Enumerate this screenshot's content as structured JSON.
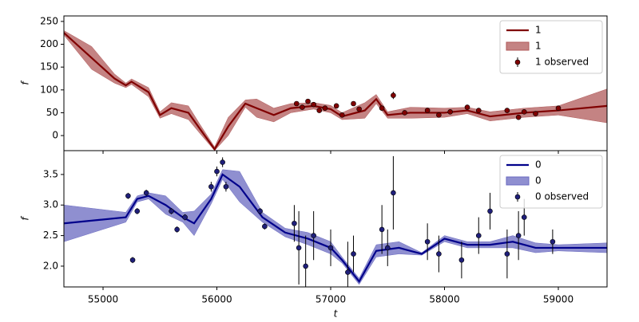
{
  "chart_data": [
    {
      "type": "line",
      "ylabel": "f",
      "xlim": [
        54656,
        59428
      ],
      "ylim": [
        -33,
        262
      ],
      "yticks": [
        0,
        50,
        100,
        150,
        200,
        250
      ],
      "legend": "upper right",
      "series": [
        {
          "name": "1",
          "kind": "line",
          "color": "#800000",
          "x": [
            54656,
            54900,
            55100,
            55200,
            55250,
            55400,
            55500,
            55600,
            55750,
            55850,
            55980,
            56100,
            56250,
            56350,
            56500,
            56650,
            56850,
            57000,
            57100,
            57300,
            57400,
            57500,
            57700,
            58000,
            58200,
            58400,
            58700,
            59000,
            59428
          ],
          "values": [
            225,
            170,
            125,
            110,
            118,
            95,
            45,
            60,
            50,
            15,
            -30,
            20,
            70,
            60,
            45,
            60,
            65,
            58,
            42,
            55,
            80,
            45,
            50,
            50,
            55,
            42,
            50,
            55,
            65
          ]
        },
        {
          "name": "1",
          "kind": "band",
          "color": "#b05a5a",
          "x": [
            54656,
            54900,
            55100,
            55200,
            55250,
            55400,
            55500,
            55600,
            55750,
            55850,
            55980,
            56100,
            56250,
            56350,
            56500,
            56650,
            56850,
            57000,
            57100,
            57300,
            57400,
            57500,
            57700,
            58000,
            58200,
            58400,
            58700,
            59000,
            59428
          ],
          "lower": [
            220,
            145,
            115,
            105,
            112,
            85,
            38,
            48,
            35,
            5,
            -33,
            0,
            62,
            40,
            30,
            50,
            58,
            50,
            35,
            38,
            70,
            38,
            38,
            40,
            48,
            32,
            40,
            45,
            28
          ],
          "upper": [
            230,
            195,
            135,
            115,
            124,
            105,
            52,
            72,
            65,
            25,
            -25,
            40,
            78,
            80,
            60,
            70,
            72,
            66,
            50,
            72,
            90,
            52,
            62,
            60,
            62,
            52,
            60,
            65,
            102
          ]
        },
        {
          "name": "1 observed",
          "kind": "points",
          "color": "#800000",
          "x": [
            56700,
            56750,
            56800,
            56850,
            56900,
            56950,
            57050,
            57100,
            57200,
            57250,
            57450,
            57550,
            57650,
            57850,
            57950,
            58050,
            58200,
            58300,
            58550,
            58650,
            58700,
            58800,
            59000
          ],
          "values": [
            70,
            62,
            75,
            68,
            55,
            60,
            65,
            45,
            70,
            58,
            60,
            88,
            50,
            55,
            45,
            52,
            62,
            55,
            55,
            40,
            52,
            48,
            60
          ],
          "errors": [
            5,
            5,
            5,
            5,
            5,
            5,
            5,
            5,
            5,
            5,
            5,
            8,
            5,
            5,
            5,
            5,
            5,
            5,
            5,
            5,
            5,
            5,
            5
          ]
        }
      ]
    },
    {
      "type": "line",
      "ylabel": "f",
      "xlabel": "t",
      "xlim": [
        54656,
        59428
      ],
      "ylim": [
        1.66,
        3.89
      ],
      "xticks": [
        55000,
        56000,
        57000,
        58000,
        59000
      ],
      "yticks": [
        {
          "value": 2,
          "label": "2.0"
        },
        2.5,
        {
          "value": 3,
          "label": "3.0"
        },
        3.5
      ],
      "legend": "upper right",
      "series": [
        {
          "name": "0",
          "kind": "line",
          "color": "#00008b",
          "x": [
            54656,
            55200,
            55300,
            55400,
            55550,
            55700,
            55800,
            55950,
            56050,
            56200,
            56400,
            56600,
            56800,
            57000,
            57100,
            57250,
            57400,
            57600,
            57800,
            58000,
            58200,
            58400,
            58600,
            58800,
            59000,
            59428
          ],
          "values": [
            2.7,
            2.8,
            3.1,
            3.15,
            3.0,
            2.8,
            2.7,
            3.1,
            3.5,
            3.3,
            2.8,
            2.55,
            2.45,
            2.3,
            2.1,
            1.75,
            2.25,
            2.3,
            2.2,
            2.45,
            2.35,
            2.35,
            2.4,
            2.3,
            2.3,
            2.3
          ]
        },
        {
          "name": "0",
          "kind": "band",
          "color": "#6a6ac0",
          "x": [
            54656,
            55200,
            55300,
            55400,
            55550,
            55700,
            55800,
            55950,
            56050,
            56200,
            56400,
            56600,
            56800,
            57000,
            57100,
            57250,
            57400,
            57600,
            57800,
            58000,
            58200,
            58400,
            58600,
            58800,
            59000,
            59428
          ],
          "lower": [
            2.4,
            2.72,
            3.05,
            3.1,
            2.85,
            2.72,
            2.5,
            3.02,
            3.42,
            3.05,
            2.72,
            2.48,
            2.35,
            2.2,
            2.05,
            1.7,
            2.15,
            2.2,
            2.18,
            2.4,
            2.3,
            2.3,
            2.3,
            2.22,
            2.25,
            2.22
          ],
          "upper": [
            3.0,
            2.88,
            3.15,
            3.2,
            3.15,
            2.88,
            2.9,
            3.18,
            3.58,
            3.55,
            2.88,
            2.62,
            2.55,
            2.4,
            2.15,
            1.8,
            2.35,
            2.4,
            2.22,
            2.5,
            2.4,
            2.4,
            2.5,
            2.38,
            2.35,
            2.38
          ]
        },
        {
          "name": "0 observed",
          "kind": "points",
          "color": "#1f1f7a",
          "x": [
            55220,
            55260,
            55300,
            55380,
            55600,
            55650,
            55720,
            55950,
            56000,
            56050,
            56080,
            56380,
            56420,
            56680,
            56720,
            56780,
            56850,
            57000,
            57150,
            57200,
            57450,
            57500,
            57550,
            57850,
            57950,
            58150,
            58300,
            58400,
            58550,
            58650,
            58700,
            58950
          ],
          "values": [
            3.15,
            2.1,
            2.9,
            3.2,
            2.9,
            2.6,
            2.8,
            3.3,
            3.55,
            3.7,
            3.3,
            2.9,
            2.65,
            2.7,
            2.3,
            2.0,
            2.5,
            2.3,
            1.9,
            2.2,
            2.6,
            2.3,
            3.2,
            2.4,
            2.2,
            2.1,
            2.5,
            2.9,
            2.2,
            2.5,
            2.8,
            2.4
          ],
          "errors": [
            0.05,
            0.05,
            0.05,
            0.05,
            0.05,
            0.05,
            0.05,
            0.08,
            0.08,
            0.08,
            0.08,
            0.05,
            0.05,
            0.3,
            0.6,
            0.5,
            0.4,
            0.3,
            0.5,
            0.3,
            0.4,
            0.3,
            0.6,
            0.3,
            0.3,
            0.3,
            0.3,
            0.3,
            0.4,
            0.4,
            0.3,
            0.2
          ]
        }
      ]
    }
  ]
}
